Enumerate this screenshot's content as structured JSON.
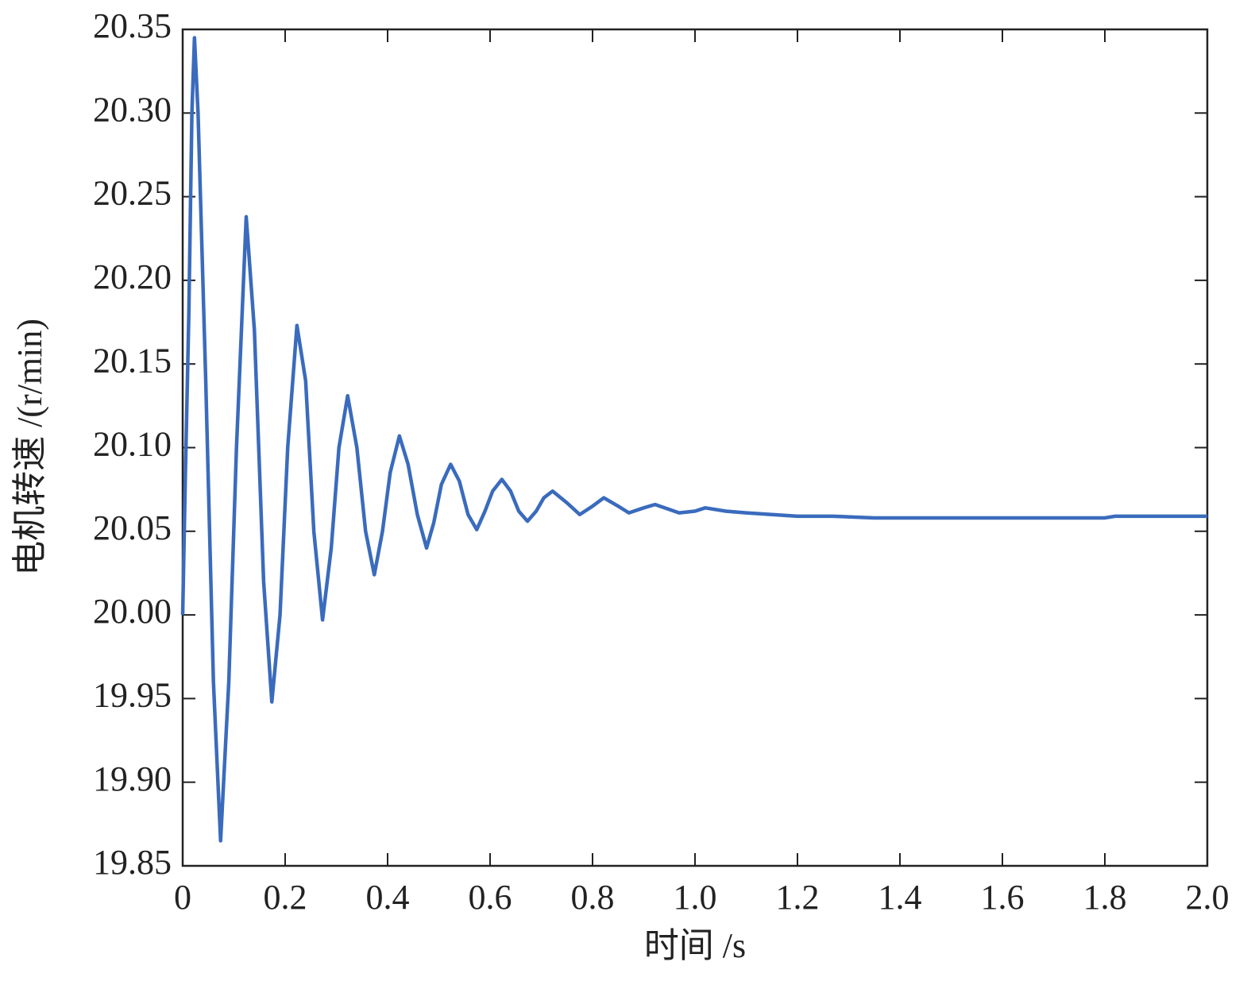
{
  "chart_data": {
    "type": "line",
    "xlabel": "时间 /s",
    "ylabel": "电机转速 /(r/min)",
    "x": [
      0,
      0.005,
      0.012,
      0.018,
      0.023,
      0.03,
      0.045,
      0.06,
      0.074,
      0.09,
      0.105,
      0.124,
      0.14,
      0.158,
      0.174,
      0.19,
      0.205,
      0.223,
      0.24,
      0.256,
      0.273,
      0.29,
      0.305,
      0.322,
      0.34,
      0.357,
      0.374,
      0.39,
      0.405,
      0.423,
      0.44,
      0.458,
      0.476,
      0.49,
      0.505,
      0.523,
      0.54,
      0.557,
      0.574,
      0.59,
      0.605,
      0.623,
      0.64,
      0.656,
      0.673,
      0.69,
      0.705,
      0.722,
      0.75,
      0.775,
      0.8,
      0.822,
      0.85,
      0.871,
      0.9,
      0.922,
      0.95,
      0.969,
      1.0,
      1.02,
      1.06,
      1.1,
      1.15,
      1.2,
      1.27,
      1.35,
      1.6,
      1.8,
      1.82,
      2.0
    ],
    "series": [
      {
        "name": "电机转速",
        "color": "#3a6bbd",
        "values": [
          20.0,
          20.08,
          20.18,
          20.3,
          20.345,
          20.3,
          20.14,
          19.96,
          19.865,
          19.96,
          20.1,
          20.238,
          20.17,
          20.02,
          19.948,
          20.0,
          20.1,
          20.173,
          20.14,
          20.05,
          19.997,
          20.04,
          20.1,
          20.131,
          20.1,
          20.05,
          20.024,
          20.05,
          20.085,
          20.107,
          20.09,
          20.06,
          20.04,
          20.055,
          20.078,
          20.09,
          20.08,
          20.06,
          20.051,
          20.062,
          20.074,
          20.081,
          20.074,
          20.062,
          20.056,
          20.062,
          20.07,
          20.074,
          20.067,
          20.06,
          20.065,
          20.07,
          20.065,
          20.061,
          20.064,
          20.066,
          20.063,
          20.061,
          20.062,
          20.064,
          20.062,
          20.061,
          20.06,
          20.059,
          20.059,
          20.058,
          20.058,
          20.058,
          20.059,
          20.059
        ]
      }
    ],
    "xlim": [
      0,
      2
    ],
    "ylim": [
      19.85,
      20.35
    ],
    "xticks": [
      0,
      0.2,
      0.4,
      0.6,
      0.8,
      {
        "value": 1,
        "label": "1.0"
      },
      1.2,
      1.4,
      1.6,
      1.8,
      {
        "value": 2,
        "label": "2.0"
      }
    ],
    "yticks": [
      19.85,
      {
        "value": 19.9,
        "label": "19.90"
      },
      19.95,
      {
        "value": 20,
        "label": "20.00"
      },
      20.05,
      {
        "value": 20.1,
        "label": "20.10"
      },
      20.15,
      {
        "value": 20.2,
        "label": "20.20"
      },
      20.25,
      {
        "value": 20.3,
        "label": "20.30"
      },
      20.35
    ]
  }
}
